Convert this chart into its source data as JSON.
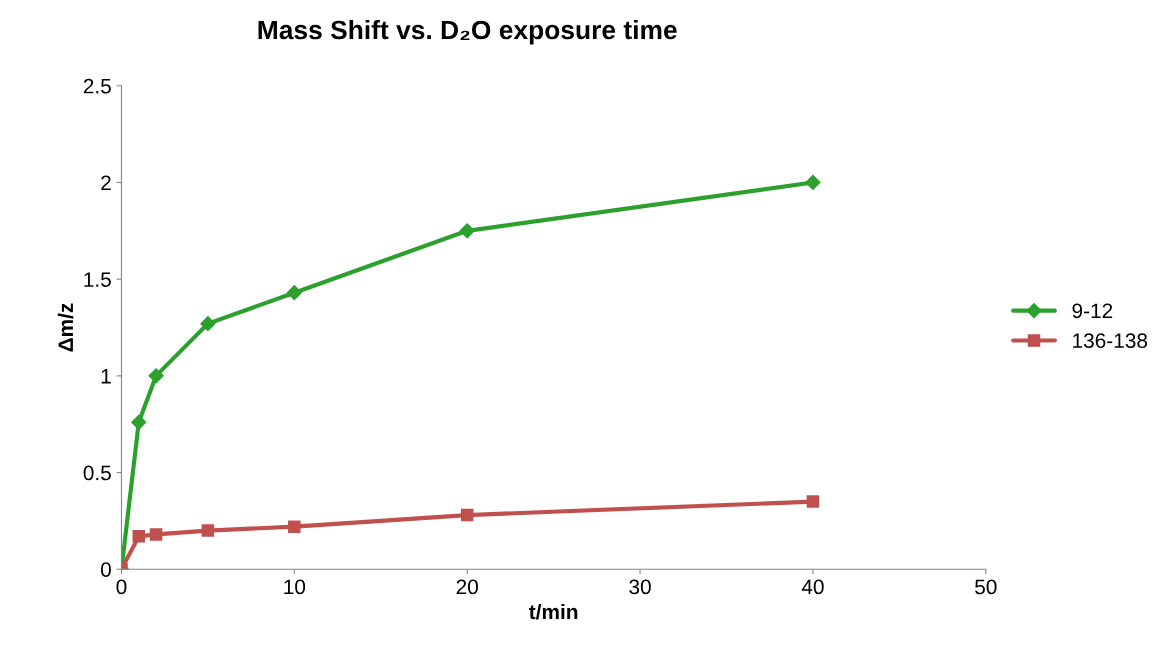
{
  "chart_data": {
    "type": "line",
    "title": "Mass Shift vs. D₂O exposure time",
    "xlabel": "t/min",
    "ylabel": "Δm/z",
    "xlim": [
      0,
      50
    ],
    "xticks": [
      0,
      10,
      20,
      30,
      40,
      50
    ],
    "ylim": [
      0,
      2.5
    ],
    "yticks": [
      0,
      0.5,
      1,
      1.5,
      2,
      2.5
    ],
    "grid": false,
    "legend": "right",
    "line_style": "solid",
    "series": [
      {
        "name": "9-12",
        "color": "#2ca02c",
        "marker": "diamond",
        "x": [
          0,
          1,
          2,
          5,
          10,
          20,
          40
        ],
        "values": [
          0,
          0.76,
          1.0,
          1.27,
          1.43,
          1.75,
          2.0
        ]
      },
      {
        "name": "136-138",
        "color": "#c0504d",
        "marker": "square",
        "x": [
          0,
          1,
          2,
          5,
          10,
          20,
          40
        ],
        "values": [
          0,
          0.17,
          0.18,
          0.2,
          0.22,
          0.28,
          0.35
        ]
      }
    ]
  }
}
